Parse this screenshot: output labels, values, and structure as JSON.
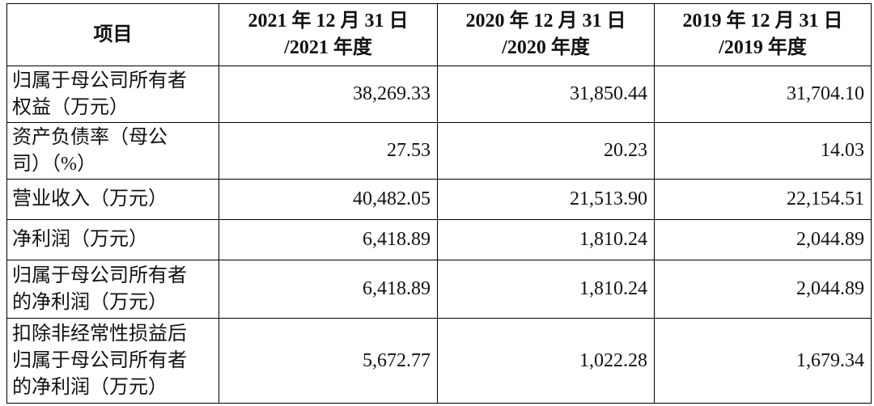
{
  "table": {
    "header": [
      [
        "项目"
      ],
      [
        "2021 年 12 月 31 日",
        "/2021 年度"
      ],
      [
        "2020 年 12 月 31 日",
        "/2020 年度"
      ],
      [
        "2019 年 12 月 31 日",
        "/2019 年度"
      ]
    ],
    "rows": [
      {
        "label": [
          "归属于母公司所有者",
          "权益（万元）"
        ],
        "values": [
          "38,269.33",
          "31,850.44",
          "31,704.10"
        ]
      },
      {
        "label": [
          "资产负债率（母公",
          "司）（%）"
        ],
        "values": [
          "27.53",
          "20.23",
          "14.03"
        ]
      },
      {
        "label": [
          "营业收入（万元）"
        ],
        "values": [
          "40,482.05",
          "21,513.90",
          "22,154.51"
        ]
      },
      {
        "label": [
          "净利润（万元）"
        ],
        "values": [
          "6,418.89",
          "1,810.24",
          "2,044.89"
        ]
      },
      {
        "label": [
          "归属于母公司所有者",
          "的净利润（万元）"
        ],
        "values": [
          "6,418.89",
          "1,810.24",
          "2,044.89"
        ]
      },
      {
        "label": [
          "扣除非经常性损益后",
          "归属于母公司所有者",
          "的净利润（万元）"
        ],
        "values": [
          "5,672.77",
          "1,022.28",
          "1,679.34"
        ]
      }
    ]
  }
}
